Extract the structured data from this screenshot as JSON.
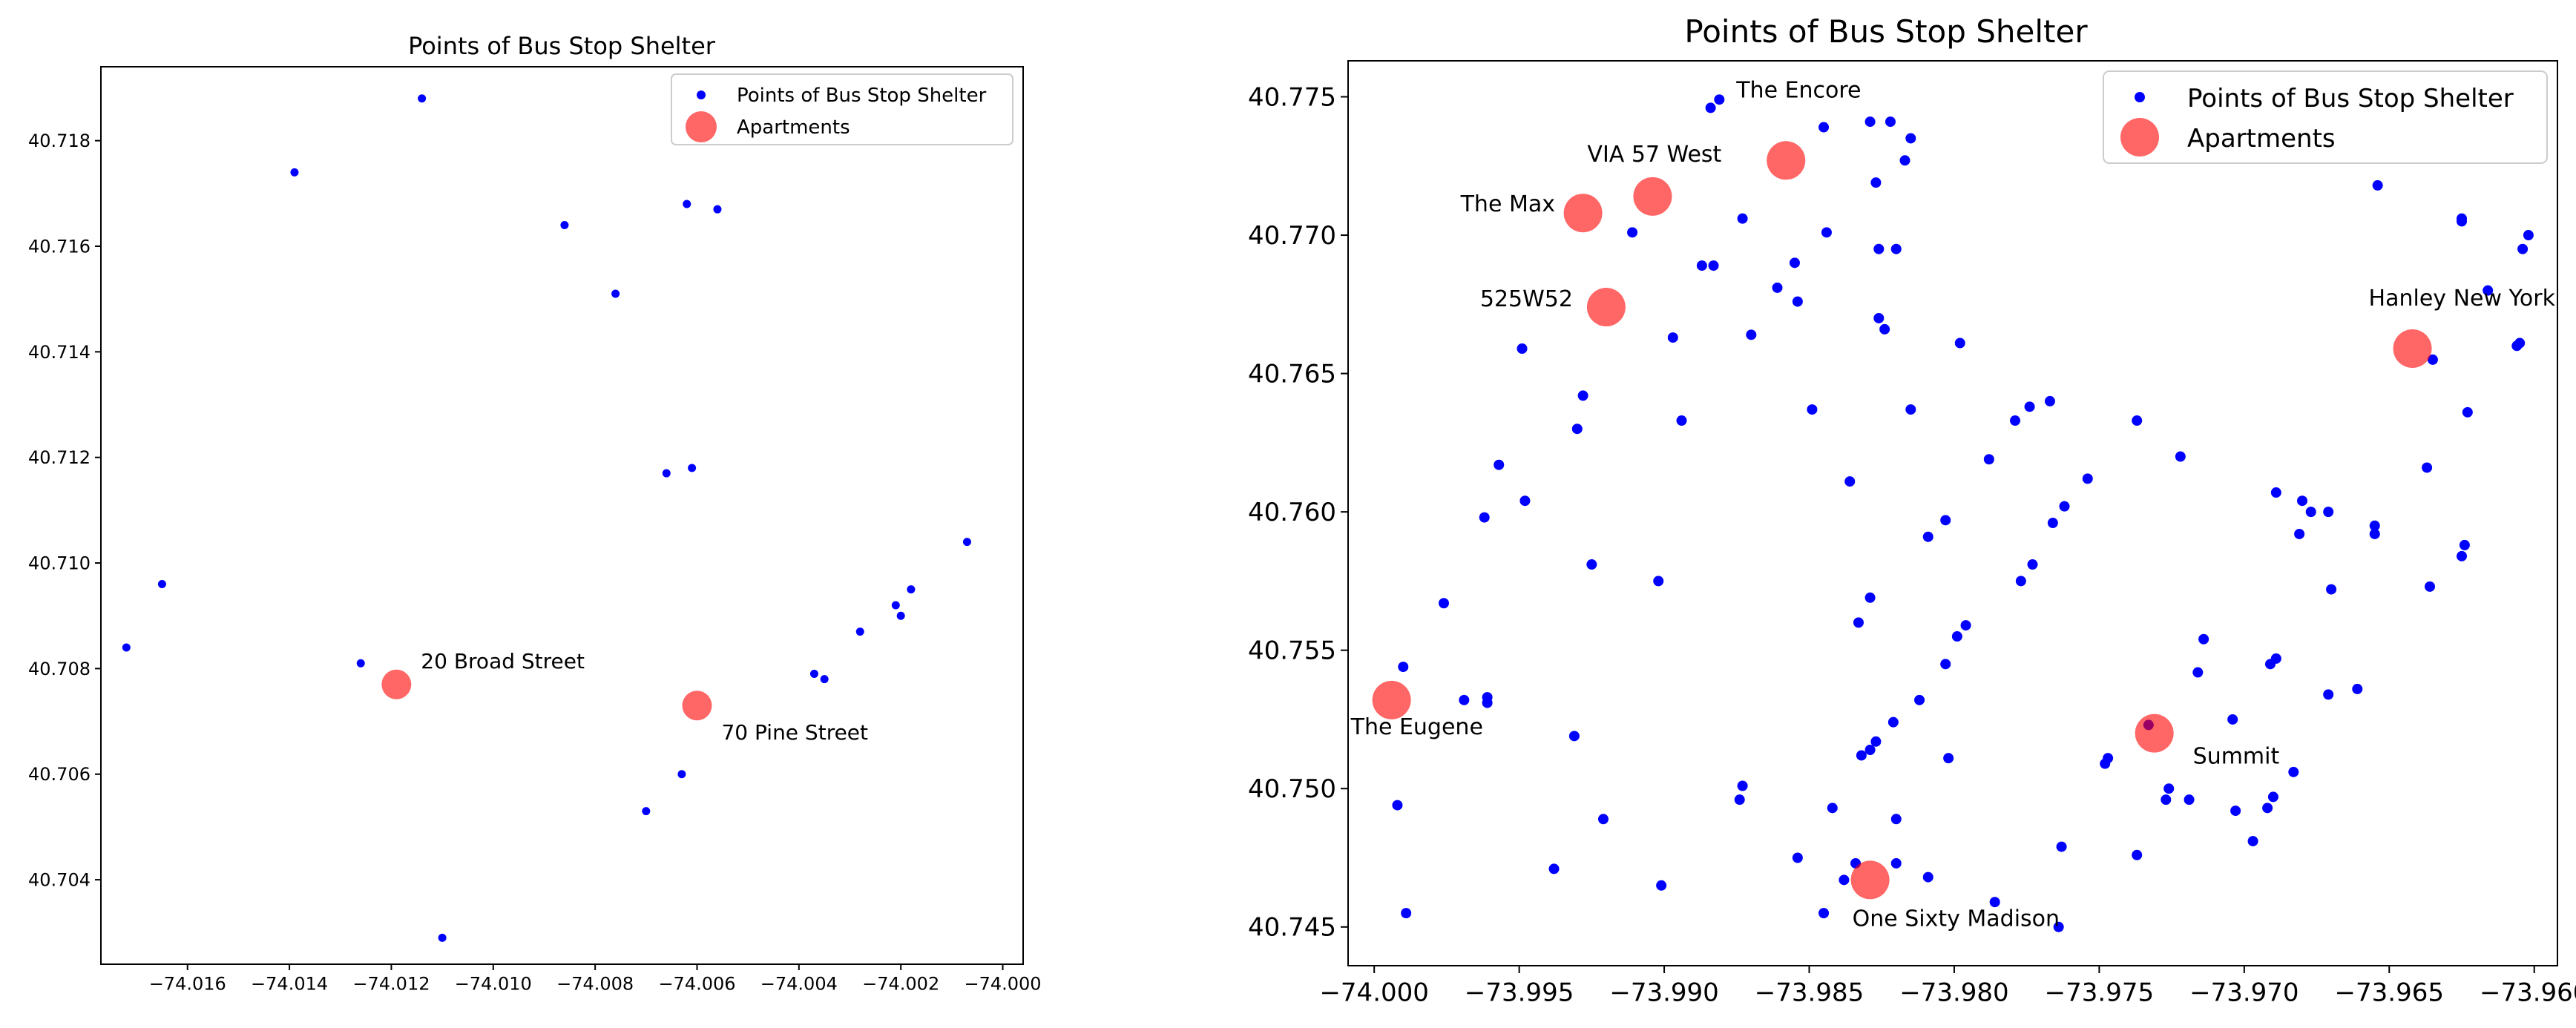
{
  "chart_data": [
    {
      "type": "scatter",
      "title": "Points of Bus Stop Shelter",
      "xlabel": "",
      "ylabel": "",
      "xlim": [
        -74.0177,
        -73.9996
      ],
      "ylim": [
        40.7024,
        40.7194
      ],
      "xticks": [
        -74.016,
        -74.014,
        -74.012,
        -74.01,
        -74.008,
        -74.006,
        -74.004,
        -74.002,
        -74.0
      ],
      "xtick_labels": [
        "−74.016",
        "−74.014",
        "−74.012",
        "−74.010",
        "−74.008",
        "−74.006",
        "−74.004",
        "−74.002",
        "−74.000"
      ],
      "yticks": [
        40.704,
        40.706,
        40.708,
        40.71,
        40.712,
        40.714,
        40.716,
        40.718
      ],
      "ytick_labels": [
        "40.704",
        "40.706",
        "40.708",
        "40.710",
        "40.712",
        "40.714",
        "40.716",
        "40.718"
      ],
      "grid": false,
      "legend": {
        "position": "top-right",
        "entries": [
          "Points of Bus Stop Shelter",
          "Apartments"
        ]
      },
      "series": [
        {
          "name": "Points of Bus Stop Shelter",
          "color": "#0000ff",
          "points": [
            [
              -74.0114,
              40.7188
            ],
            [
              -74.0139,
              40.7174
            ],
            [
              -74.0086,
              40.7164
            ],
            [
              -74.0062,
              40.7168
            ],
            [
              -74.0056,
              40.7167
            ],
            [
              -74.0076,
              40.7151
            ],
            [
              -74.0066,
              40.7117
            ],
            [
              -74.0061,
              40.7118
            ],
            [
              -74.0165,
              40.7096
            ],
            [
              -74.0172,
              40.7084
            ],
            [
              -74.0126,
              40.7081
            ],
            [
              -74.0007,
              40.7104
            ],
            [
              -74.0018,
              40.7095
            ],
            [
              -74.0021,
              40.7092
            ],
            [
              -74.002,
              40.709
            ],
            [
              -74.0028,
              40.7087
            ],
            [
              -74.0037,
              40.7079
            ],
            [
              -74.0035,
              40.7078
            ],
            [
              -74.0063,
              40.706
            ],
            [
              -74.007,
              40.7053
            ],
            [
              -74.011,
              40.7029
            ]
          ]
        },
        {
          "name": "Apartments",
          "color": "#ff0000",
          "points": [
            [
              -74.0119,
              40.7077
            ],
            [
              -74.006,
              40.7073
            ]
          ],
          "labels": [
            "20 Broad Street",
            "70 Pine Street"
          ]
        }
      ]
    },
    {
      "type": "scatter",
      "title": "Points of Bus Stop Shelter",
      "xlabel": "",
      "ylabel": "",
      "xlim": [
        -74.0009,
        -73.9592
      ],
      "ylim": [
        40.7436,
        40.7763
      ],
      "xticks": [
        -74.0,
        -73.995,
        -73.99,
        -73.985,
        -73.98,
        -73.975,
        -73.97,
        -73.965,
        -73.96
      ],
      "xtick_labels": [
        "−74.000",
        "−73.995",
        "−73.990",
        "−73.985",
        "−73.980",
        "−73.975",
        "−73.970",
        "−73.965",
        "−73.960"
      ],
      "yticks": [
        40.745,
        40.75,
        40.755,
        40.76,
        40.765,
        40.77,
        40.775
      ],
      "ytick_labels": [
        "40.745",
        "40.750",
        "40.755",
        "40.760",
        "40.765",
        "40.770",
        "40.775"
      ],
      "grid": false,
      "legend": {
        "position": "top-right",
        "entries": [
          "Points of Bus Stop Shelter",
          "Apartments"
        ]
      },
      "series": [
        {
          "name": "Points of Bus Stop Shelter",
          "color": "#0000ff",
          "points": [
            [
              -73.9884,
              40.7746
            ],
            [
              -73.9881,
              40.7749
            ],
            [
              -73.9845,
              40.7739
            ],
            [
              -73.9829,
              40.7741
            ],
            [
              -73.9822,
              40.7741
            ],
            [
              -73.9815,
              40.7735
            ],
            [
              -73.9817,
              40.7727
            ],
            [
              -73.9827,
              40.7719
            ],
            [
              -73.9911,
              40.7701
            ],
            [
              -73.9873,
              40.7706
            ],
            [
              -73.9844,
              40.7701
            ],
            [
              -73.9887,
              40.7689
            ],
            [
              -73.9883,
              40.7689
            ],
            [
              -73.9855,
              40.769
            ],
            [
              -73.9826,
              40.7695
            ],
            [
              -73.982,
              40.7695
            ],
            [
              -73.9861,
              40.7681
            ],
            [
              -73.9854,
              40.7676
            ],
            [
              -73.9826,
              40.767
            ],
            [
              -73.9824,
              40.7666
            ],
            [
              -73.987,
              40.7664
            ],
            [
              -73.9897,
              40.7663
            ],
            [
              -73.9949,
              40.7659
            ],
            [
              -73.9798,
              40.7661
            ],
            [
              -73.9928,
              40.7642
            ],
            [
              -73.9849,
              40.7637
            ],
            [
              -73.9815,
              40.7637
            ],
            [
              -73.9894,
              40.7633
            ],
            [
              -73.993,
              40.763
            ],
            [
              -73.9957,
              40.7617
            ],
            [
              -73.9948,
              40.7604
            ],
            [
              -73.9836,
              40.7611
            ],
            [
              -73.9779,
              40.7633
            ],
            [
              -73.9774,
              40.7638
            ],
            [
              -73.9767,
              40.764
            ],
            [
              -73.9788,
              40.7619
            ],
            [
              -73.9737,
              40.7633
            ],
            [
              -73.9722,
              40.762
            ],
            [
              -73.9754,
              40.7612
            ],
            [
              -73.9762,
              40.7602
            ],
            [
              -73.9766,
              40.7596
            ],
            [
              -73.9803,
              40.7597
            ],
            [
              -73.9809,
              40.7591
            ],
            [
              -73.9962,
              40.7598
            ],
            [
              -73.9925,
              40.7581
            ],
            [
              -73.9902,
              40.7575
            ],
            [
              -73.9976,
              40.7567
            ],
            [
              -73.9829,
              40.7569
            ],
            [
              -73.9833,
              40.756
            ],
            [
              -73.9773,
              40.7581
            ],
            [
              -73.9777,
              40.7575
            ],
            [
              -73.9796,
              40.7559
            ],
            [
              -73.9799,
              40.7555
            ],
            [
              -73.999,
              40.7544
            ],
            [
              -73.9969,
              40.7532
            ],
            [
              -73.9961,
              40.7533
            ],
            [
              -73.9961,
              40.7531
            ],
            [
              -73.9931,
              40.7519
            ],
            [
              -73.9803,
              40.7545
            ],
            [
              -73.9812,
              40.7532
            ],
            [
              -73.9821,
              40.7524
            ],
            [
              -73.9827,
              40.7517
            ],
            [
              -73.9829,
              40.7514
            ],
            [
              -73.9832,
              40.7512
            ],
            [
              -73.9802,
              40.7511
            ],
            [
              -73.9873,
              40.7501
            ],
            [
              -73.9874,
              40.7496
            ],
            [
              -73.9992,
              40.7494
            ],
            [
              -73.9921,
              40.7489
            ],
            [
              -73.9842,
              40.7493
            ],
            [
              -73.982,
              40.7489
            ],
            [
              -73.9854,
              40.7475
            ],
            [
              -73.9938,
              40.7471
            ],
            [
              -73.9901,
              40.7465
            ],
            [
              -73.9834,
              40.7473
            ],
            [
              -73.982,
              40.7473
            ],
            [
              -73.9838,
              40.7467
            ],
            [
              -73.9809,
              40.7468
            ],
            [
              -73.9845,
              40.7455
            ],
            [
              -73.9989,
              40.7455
            ],
            [
              -73.9786,
              40.7459
            ],
            [
              -73.9764,
              40.745
            ],
            [
              -73.9763,
              40.7479
            ],
            [
              -73.9748,
              40.7509
            ],
            [
              -73.9747,
              40.7511
            ],
            [
              -73.9737,
              40.7476
            ],
            [
              -73.9726,
              40.75
            ],
            [
              -73.9727,
              40.7496
            ],
            [
              -73.9719,
              40.7496
            ],
            [
              -73.9733,
              40.7523
            ],
            [
              -73.9704,
              40.7525
            ],
            [
              -73.9714,
              40.7554
            ],
            [
              -73.9716,
              40.7542
            ],
            [
              -73.9689,
              40.7547
            ],
            [
              -73.9691,
              40.7545
            ],
            [
              -73.9703,
              40.7492
            ],
            [
              -73.9697,
              40.7481
            ],
            [
              -73.969,
              40.7497
            ],
            [
              -73.9692,
              40.7493
            ],
            [
              -73.9683,
              40.7506
            ],
            [
              -73.9671,
              40.7534
            ],
            [
              -73.9661,
              40.7536
            ],
            [
              -73.9689,
              40.7607
            ],
            [
              -73.968,
              40.7604
            ],
            [
              -73.9677,
              40.76
            ],
            [
              -73.9671,
              40.76
            ],
            [
              -73.9681,
              40.7592
            ],
            [
              -73.967,
              40.7572
            ],
            [
              -73.9655,
              40.7595
            ],
            [
              -73.9655,
              40.7592
            ],
            [
              -73.9637,
              40.7616
            ],
            [
              -73.9636,
              40.7573
            ],
            [
              -73.9624,
              40.7588
            ],
            [
              -73.9625,
              40.7584
            ],
            [
              -73.9623,
              40.7636
            ],
            [
              -73.9635,
              40.7655
            ],
            [
              -73.9605,
              40.7661
            ],
            [
              -73.9606,
              40.766
            ],
            [
              -73.9616,
              40.768
            ],
            [
              -73.9604,
              40.7695
            ],
            [
              -73.9602,
              40.77
            ],
            [
              -73.9625,
              40.7706
            ],
            [
              -73.9625,
              40.7705
            ],
            [
              -73.9654,
              40.7718
            ]
          ]
        },
        {
          "name": "Apartments",
          "color": "#ff0000",
          "points": [
            [
              -73.9858,
              40.7727
            ],
            [
              -73.9904,
              40.7714
            ],
            [
              -73.9928,
              40.7708
            ],
            [
              -73.992,
              40.7674
            ],
            [
              -73.9642,
              40.7659
            ],
            [
              -73.9994,
              40.7532
            ],
            [
              -73.9731,
              40.752
            ],
            [
              -73.9829,
              40.7467
            ]
          ],
          "labels": [
            "The Encore",
            "VIA 57 West",
            "The Max",
            "525W52",
            "Hanley New York",
            "The Eugene",
            "Summit",
            "One Sixty Madison"
          ]
        }
      ]
    }
  ]
}
